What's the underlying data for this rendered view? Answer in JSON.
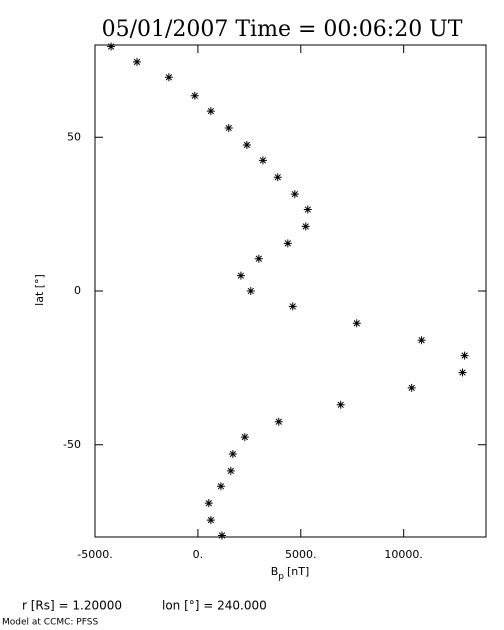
{
  "chart_data": {
    "type": "scatter",
    "title": "05/01/2007 Time = 00:06:20 UT",
    "xlabel": [
      "B",
      "p",
      "[nT]"
    ],
    "ylabel": "lat [°]",
    "annotations": [
      "r [Rs] = 1.20000",
      "lon [°] = 240.000",
      "Model at CCMC: PFSS"
    ],
    "x": [
      -4220,
      -2960,
      -1410,
      -150,
      630,
      1500,
      2380,
      3160,
      3880,
      4710,
      5340,
      5240,
      4370,
      2960,
      2090,
      2570,
      4610,
      7720,
      10870,
      12960,
      12860,
      10390,
      6940,
      3930,
      2280,
      1700,
      1600,
      1120,
      530,
      630,
      1170
    ],
    "series": [
      {
        "color": "#000000",
        "marker": "asterisk",
        "values": [
          79.5,
          74.5,
          69.5,
          63.5,
          58.5,
          53,
          47.5,
          42.5,
          37,
          31.5,
          26.5,
          21,
          15.5,
          10.5,
          5,
          0,
          -5,
          -10.5,
          -16,
          -21,
          -26.5,
          -31.5,
          -37,
          -42.5,
          -47.5,
          -53,
          -58.5,
          -63.5,
          -69,
          -74.5,
          -79.5
        ]
      }
    ],
    "xlim": [
      -5000,
      14000
    ],
    "ylim": [
      -80,
      80
    ],
    "xticks": [
      {
        "value": -5000,
        "label": "-5000."
      },
      {
        "value": 0,
        "label": "0."
      },
      {
        "value": 5000,
        "label": "5000."
      },
      {
        "value": 10000,
        "label": "10000."
      }
    ],
    "yticks": [
      -50,
      0,
      50
    ]
  }
}
